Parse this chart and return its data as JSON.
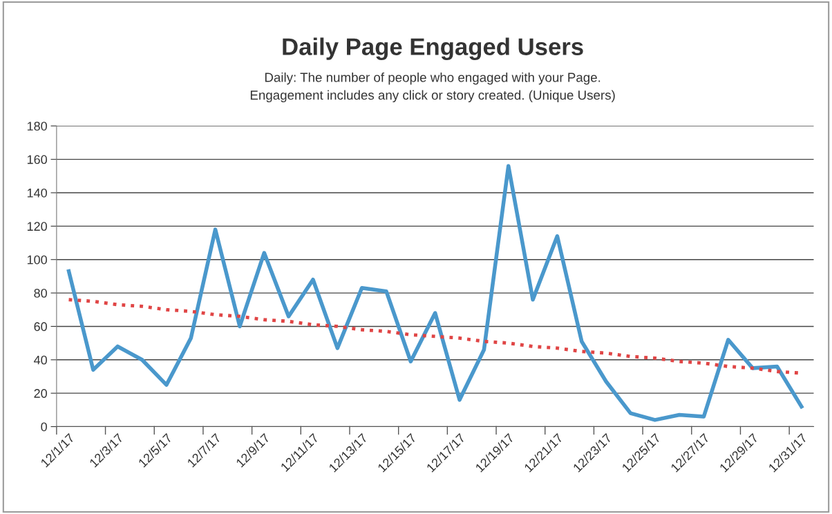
{
  "chart_data": {
    "type": "line",
    "title": "Daily Page Engaged Users",
    "subtitle": "Daily: The number of people who engaged with your Page.\nEngagement includes any click or story created. (Unique Users)",
    "categories": [
      "12/1/17",
      null,
      "12/3/17",
      null,
      "12/5/17",
      null,
      "12/7/17",
      null,
      "12/9/17",
      null,
      "12/11/17",
      null,
      "12/13/17",
      null,
      "12/15/17",
      null,
      "12/17/17",
      null,
      "12/19/17",
      null,
      "12/21/17",
      null,
      "12/23/17",
      null,
      "12/25/17",
      null,
      "12/27/17",
      null,
      "12/29/17",
      null,
      "12/31/17"
    ],
    "series": [
      {
        "color": "#4a98cc",
        "line_style": "solid",
        "values": [
          93,
          34,
          48,
          40,
          25,
          53,
          118,
          60,
          104,
          66,
          88,
          47,
          83,
          81,
          39,
          68,
          16,
          46,
          156,
          76,
          114,
          51,
          27,
          8,
          4,
          7,
          6,
          52,
          35,
          36,
          12
        ]
      },
      {
        "color": "#e04545",
        "line_style": "dotted",
        "values": [
          76,
          75,
          73,
          72,
          70,
          69,
          67,
          66,
          64,
          63,
          61,
          60,
          58,
          57,
          55,
          54,
          53,
          51,
          50,
          48,
          47,
          45,
          44,
          42,
          41,
          39,
          38,
          36,
          35,
          33,
          32
        ]
      }
    ],
    "ylim": [
      0,
      180
    ],
    "yticks": [
      0,
      20,
      40,
      60,
      80,
      100,
      120,
      140,
      160,
      180
    ],
    "grid": "y",
    "marker": "none"
  }
}
